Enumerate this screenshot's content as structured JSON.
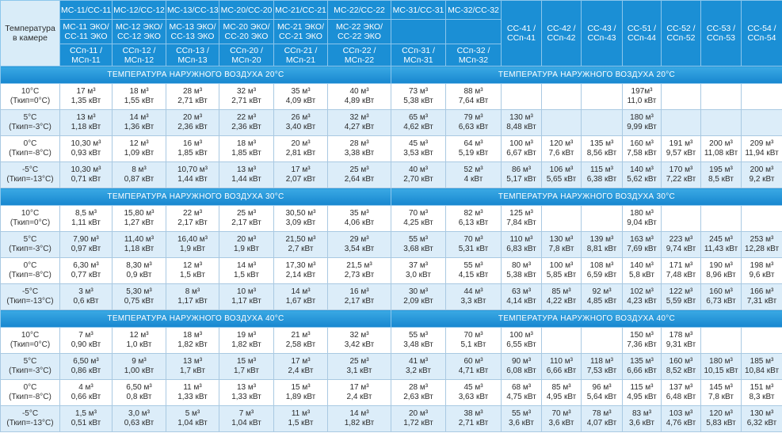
{
  "header": {
    "corner": [
      "Температура",
      "в камере"
    ],
    "columns": [
      {
        "cells": [
          [
            "МС-11/СС-11"
          ],
          [
            "МС-11 ЭКО/",
            "СС-11 ЭКО"
          ],
          [
            "ССп-11 /",
            "МСп-11"
          ]
        ]
      },
      {
        "cells": [
          [
            "МС-12/СС-12"
          ],
          [
            "МС-12 ЭКО/",
            "СС-12 ЭКО"
          ],
          [
            "ССп-12 /",
            "МСп-12"
          ]
        ]
      },
      {
        "cells": [
          [
            "МС-13/СС-13"
          ],
          [
            "МС-13 ЭКО/",
            "СС-13 ЭКО"
          ],
          [
            "ССп-13 /",
            "МСп-13"
          ]
        ]
      },
      {
        "cells": [
          [
            "МС-20/СС-20"
          ],
          [
            "МС-20 ЭКО/",
            "СС-20 ЭКО"
          ],
          [
            "ССп-20 /",
            "МСп-20"
          ]
        ]
      },
      {
        "cells": [
          [
            "МС-21/СС-21"
          ],
          [
            "МС-21 ЭКО/",
            "СС-21 ЭКО"
          ],
          [
            "ССп-21 /",
            "МСп-21"
          ]
        ]
      },
      {
        "cells": [
          [
            "МС-22/СС-22"
          ],
          [
            "МС-22 ЭКО/",
            "СС-22 ЭКО"
          ],
          [
            "ССп-22 /",
            "МСп-22"
          ]
        ]
      },
      {
        "cells": [
          [
            "МС-31/СС-31"
          ],
          null,
          [
            "ССп-31 /",
            "МСп-31"
          ]
        ]
      },
      {
        "cells": [
          [
            "МС-32/СС-32"
          ],
          null,
          [
            "ССп-32 /",
            "МСп-32"
          ]
        ]
      },
      {
        "cells": [
          [
            "СС-41 /",
            "ССп-41"
          ]
        ]
      },
      {
        "cells": [
          [
            "СС-42 /",
            "ССп-42"
          ]
        ]
      },
      {
        "cells": [
          [
            "СС-43 /",
            "ССп-43"
          ]
        ]
      },
      {
        "cells": [
          [
            "СС-51 /",
            "ССп-44"
          ]
        ]
      },
      {
        "cells": [
          [
            "СС-52 /",
            "ССп-52"
          ]
        ]
      },
      {
        "cells": [
          [
            "СС-53 /",
            "ССп-53"
          ]
        ]
      },
      {
        "cells": [
          [
            "СС-54 /",
            "ССп-54"
          ]
        ]
      }
    ]
  },
  "sections": [
    {
      "left_title": "ТЕМПЕРАТУРА НАРУЖНОГО ВОЗДУХА 20°С",
      "right_title": "ТЕМПЕРАТУРА НАРУЖНОГО ВОЗДУХА 20°С",
      "rows": [
        {
          "temp": [
            "10°С",
            "(Ткип=0°С)"
          ],
          "cells": [
            [
              "17 м³",
              "1,35 кВт"
            ],
            [
              "18 м³",
              "1,55 кВт"
            ],
            [
              "28 м³",
              "2,71 кВт"
            ],
            [
              "32 м³",
              "2,71 кВт"
            ],
            [
              "35 м³",
              "4,09 кВт"
            ],
            [
              "40 м³",
              "4,89 кВт"
            ],
            [
              "73 м³",
              "5,38 кВт"
            ],
            [
              "88 м³",
              "7,64 кВт"
            ],
            null,
            null,
            null,
            [
              "197м³",
              "11,0 кВт"
            ],
            null,
            null,
            null
          ]
        },
        {
          "temp": [
            "5°С",
            "(Ткип=-3°С)"
          ],
          "cells": [
            [
              "13 м³",
              "1,18 кВт"
            ],
            [
              "14 м³",
              "1,36 кВт"
            ],
            [
              "20 м³",
              "2,36 кВт"
            ],
            [
              "22 м³",
              "2,36 кВт"
            ],
            [
              "26 м³",
              "3,40 кВт"
            ],
            [
              "32 м³",
              "4,27 кВт"
            ],
            [
              "65 м³",
              "4,62 кВт"
            ],
            [
              "79 м³",
              "6,63 кВт"
            ],
            [
              "130 м³",
              "8,48 кВт"
            ],
            null,
            null,
            [
              "180 м³",
              "9,99 кВт"
            ],
            null,
            null,
            null
          ]
        },
        {
          "temp": [
            "0°С",
            "(Ткип=-8°С)"
          ],
          "cells": [
            [
              "10,30 м³",
              "0,93 кВт"
            ],
            [
              "12 м³",
              "1,09 кВт"
            ],
            [
              "16 м³",
              "1,85 кВт"
            ],
            [
              "18 м³",
              "1,85 кВт"
            ],
            [
              "20 м³",
              "2,81 кВт"
            ],
            [
              "28 м³",
              "3,38 кВт"
            ],
            [
              "45 м³",
              "3,53 кВт"
            ],
            [
              "64 м³",
              "5,19 кВт"
            ],
            [
              "100 м³",
              "6,67 кВт"
            ],
            [
              "120 м³",
              "7,6 кВт"
            ],
            [
              "135 м³",
              "8,56 кВт"
            ],
            [
              "160 м³",
              "7,58 кВт"
            ],
            [
              "191 м³",
              "9,57 кВт"
            ],
            [
              "200 м³",
              "11,08 кВт"
            ],
            [
              "209 м³",
              "11,94 кВт"
            ]
          ]
        },
        {
          "temp": [
            "-5°С",
            "(Ткип=-13°С)"
          ],
          "cells": [
            [
              "10,30 м³",
              "0,71 кВт"
            ],
            [
              "8 м³",
              "0,87 кВт"
            ],
            [
              "10,70 м³",
              "1,44 кВт"
            ],
            [
              "13 м³",
              "1,44 кВт"
            ],
            [
              "17 м³",
              "2,07 кВт"
            ],
            [
              "25 м³",
              "2,64 кВт"
            ],
            [
              "40 м³",
              "2,70 кВт"
            ],
            [
              "52 м³",
              "4 кВт"
            ],
            [
              "86 м³",
              "5,17 кВт"
            ],
            [
              "106 м³",
              "5,65 кВт"
            ],
            [
              "115 м³",
              "6,38 кВт"
            ],
            [
              "140 м³",
              "5,62 кВт"
            ],
            [
              "170 м³",
              "7,22 кВт"
            ],
            [
              "195 м³",
              "8,5 кВт"
            ],
            [
              "200 м³",
              "9,2 кВт"
            ]
          ]
        }
      ]
    },
    {
      "left_title": "ТЕМПЕРАТУРА НАРУЖНОГО ВОЗДУХА 30°С",
      "right_title": "ТЕМПЕРАТУРА НАРУЖНОГО ВОЗДУХА 30°С",
      "rows": [
        {
          "temp": [
            "10°С",
            "(Ткип=0°С)"
          ],
          "cells": [
            [
              "8,5 м³",
              "1,11 кВт"
            ],
            [
              "15,80 м³",
              "1,27 кВт"
            ],
            [
              "22 м³",
              "2,17 кВт"
            ],
            [
              "25 м³",
              "2,17 кВт"
            ],
            [
              "30,50 м³",
              "3,09 кВт"
            ],
            [
              "35 м³",
              "4,06 кВт"
            ],
            [
              "70 м³",
              "4,25 кВт"
            ],
            [
              "82 м³",
              "6,13 кВт"
            ],
            [
              "125 м³",
              "7,84 кВт"
            ],
            null,
            null,
            [
              "180 м³",
              "9,04 кВт"
            ],
            null,
            null,
            null
          ]
        },
        {
          "temp": [
            "5°С",
            "(Ткип=-3°С)"
          ],
          "cells": [
            [
              "7,90 м³",
              "0,97 кВт"
            ],
            [
              "11,40 м³",
              "1,18 кВт"
            ],
            [
              "16,40 м³",
              "1,9 кВт"
            ],
            [
              "20 м³",
              "1,9 кВт"
            ],
            [
              "21,50 м³",
              "2,7 кВт"
            ],
            [
              "29 м³",
              "3,54 кВт"
            ],
            [
              "55 м³",
              "3,68 кВт"
            ],
            [
              "70 м³",
              "5,31 кВт"
            ],
            [
              "110 м³",
              "6,83 кВт"
            ],
            [
              "130 м³",
              "7,8 кВт"
            ],
            [
              "139 м³",
              "8,81 кВт"
            ],
            [
              "163 м³",
              "7,69 кВт"
            ],
            [
              "223 м³",
              "9,74 кВт"
            ],
            [
              "245 м³",
              "11,43 кВт"
            ],
            [
              "253 м³",
              "12,28 кВт"
            ]
          ]
        },
        {
          "temp": [
            "0°С",
            "(Ткип=-8°С)"
          ],
          "cells": [
            [
              "6,30 м³",
              "0,77 кВт"
            ],
            [
              "8,30 м³",
              "0,9 кВт"
            ],
            [
              "12 м³",
              "1,5 кВт"
            ],
            [
              "14 м³",
              "1,5 кВт"
            ],
            [
              "17,30 м³",
              "2,14 кВт"
            ],
            [
              "21,5 м³",
              "2,73 кВт"
            ],
            [
              "37 м³",
              "3,0 кВт"
            ],
            [
              "55 м³",
              "4,15 кВт"
            ],
            [
              "80 м³",
              "5,38 кВт"
            ],
            [
              "100 м³",
              "5,85 кВт"
            ],
            [
              "108 м³",
              "6,59 кВт"
            ],
            [
              "140 м³",
              "5,8 кВт"
            ],
            [
              "171 м³",
              "7,48 кВт"
            ],
            [
              "190 м³",
              "8,96 кВт"
            ],
            [
              "198 м³",
              "9,6 кВт"
            ]
          ]
        },
        {
          "temp": [
            "-5°С",
            "(Ткип=-13°С)"
          ],
          "cells": [
            [
              "3 м³",
              "0,6 кВт"
            ],
            [
              "5,30 м³",
              "0,75 кВт"
            ],
            [
              "8 м³",
              "1,17 кВт"
            ],
            [
              "10 м³",
              "1,17 кВт"
            ],
            [
              "14 м³",
              "1,67 кВт"
            ],
            [
              "16 м³",
              "2,17 кВт"
            ],
            [
              "30 м³",
              "2,09 кВт"
            ],
            [
              "44 м³",
              "3,3 кВт"
            ],
            [
              "63 м³",
              "4,14 кВт"
            ],
            [
              "85 м³",
              "4,22 кВт"
            ],
            [
              "92 м³",
              "4,85 кВт"
            ],
            [
              "102 м³",
              "4,23 кВт"
            ],
            [
              "122 м³",
              "5,59 кВт"
            ],
            [
              "160 м³",
              "6,73 кВт"
            ],
            [
              "166 м³",
              "7,31 кВт"
            ]
          ]
        }
      ]
    },
    {
      "left_title": "ТЕМПЕРАТУРА НАРУЖНОГО ВОЗДУХА 40°С",
      "right_title": "ТЕМПЕРАТУРА НАРУЖНОГО ВОЗДУХА 40°С",
      "rows": [
        {
          "temp": [
            "10°С",
            "(Ткип=0°С)"
          ],
          "cells": [
            [
              "7 м³",
              "0,90 кВт"
            ],
            [
              "12 м³",
              "1,0 кВт"
            ],
            [
              "18 м³",
              "1,82 кВт"
            ],
            [
              "19 м³",
              "1,82 кВт"
            ],
            [
              "21 м³",
              "2,58 кВт"
            ],
            [
              "32 м³",
              "3,42 кВт"
            ],
            [
              "55 м³",
              "3,48 кВт"
            ],
            [
              "70 м³",
              "5,1 кВт"
            ],
            [
              "100 м³",
              "6,55 кВт"
            ],
            null,
            null,
            [
              "150 м³",
              "7,36 кВт"
            ],
            [
              "178 м³",
              "9,31 кВт"
            ],
            null,
            null
          ]
        },
        {
          "temp": [
            "5°С",
            "(Ткип=-3°С)"
          ],
          "cells": [
            [
              "6,50 м³",
              "0,86 кВт"
            ],
            [
              "9 м³",
              "1,00 кВт"
            ],
            [
              "13 м³",
              "1,7 кВт"
            ],
            [
              "15 м³",
              "1,7 кВт"
            ],
            [
              "17 м³",
              "2,4 кВт"
            ],
            [
              "25 м³",
              "3,1 кВт"
            ],
            [
              "41 м³",
              "3,2 кВт"
            ],
            [
              "60 м³",
              "4,71 кВт"
            ],
            [
              "90 м³",
              "6,08 кВт"
            ],
            [
              "110 м³",
              "6,66 кВт"
            ],
            [
              "118 м³",
              "7,53 кВт"
            ],
            [
              "135 м³",
              "6,66 кВт"
            ],
            [
              "160 м³",
              "8,52 кВт"
            ],
            [
              "180 м³",
              "10,15 кВт"
            ],
            [
              "185 м³",
              "10,84 кВт"
            ]
          ]
        },
        {
          "temp": [
            "0°С",
            "(Ткип=-8°С)"
          ],
          "cells": [
            [
              "4 м³",
              "0,66 кВт"
            ],
            [
              "6,50 м³",
              "0,8 кВт"
            ],
            [
              "11 м³",
              "1,33 кВт"
            ],
            [
              "13 м³",
              "1,33 кВт"
            ],
            [
              "15 м³",
              "1,89 кВт"
            ],
            [
              "17 м³",
              "2,4 кВт"
            ],
            [
              "28 м³",
              "2,63 кВт"
            ],
            [
              "45 м³",
              "3,63 кВт"
            ],
            [
              "68 м³",
              "4,75 кВт"
            ],
            [
              "85 м³",
              "4,95 кВт"
            ],
            [
              "96 м³",
              "5,64 кВт"
            ],
            [
              "115 м³",
              "4,95 кВт"
            ],
            [
              "137 м³",
              "6,48 кВт"
            ],
            [
              "145 м³",
              "7,8 кВт"
            ],
            [
              "151 м³",
              "8,3 кВт"
            ]
          ]
        },
        {
          "temp": [
            "-5°С",
            "(Ткип=-13°С)"
          ],
          "cells": [
            [
              "1,5 м³",
              "0,51 кВт"
            ],
            [
              "3,0 м³",
              "0,63 кВт"
            ],
            [
              "5 м³",
              "1,04 кВт"
            ],
            [
              "7 м³",
              "1,04 кВт"
            ],
            [
              "11 м³",
              "1,5 кВт"
            ],
            [
              "14 м³",
              "1,82 кВт"
            ],
            [
              "20 м³",
              "1,72 кВт"
            ],
            [
              "38 м³",
              "2,71 кВт"
            ],
            [
              "55 м³",
              "3,6 кВт"
            ],
            [
              "70 м³",
              "3,6 кВт"
            ],
            [
              "78 м³",
              "4,07 кВт"
            ],
            [
              "83 м³",
              "3,6 кВт"
            ],
            [
              "103 м³",
              "4,76 кВт"
            ],
            [
              "120 м³",
              "5,83 кВт"
            ],
            [
              "130 м³",
              "6,32 кВт"
            ]
          ]
        }
      ]
    }
  ]
}
